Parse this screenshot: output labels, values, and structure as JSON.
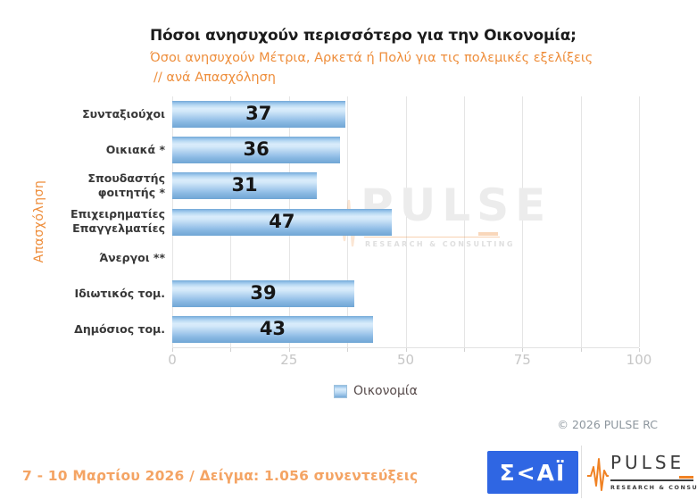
{
  "header": {
    "title": "Πόσοι ανησυχούν περισσότερο για την Οικονομία;",
    "subtitle_line1": "Όσοι ανησυχούν Μέτρια, Αρκετά ή Πολύ για τις πολεμικές εξελίξεις",
    "subtitle_line2": "// ανά Απασχόληση"
  },
  "chart_data": {
    "type": "bar",
    "orientation": "horizontal",
    "title": "Πόσοι ανησυχούν περισσότερο για την Οικονομία;",
    "subtitle": "Όσοι ανησυχούν Μέτρια, Αρκετά ή Πολύ για τις πολεμικές εξελίξεις // ανά Απασχόληση",
    "ylabel": "Απασχόληση",
    "xlabel": "",
    "categories": [
      "Συνταξιούχοι",
      "Οικιακά *",
      "Σπουδαστής φοιτητής *",
      "Επιχειρηματίες Επαγγελματίες",
      "Άνεργοι **",
      "Ιδιωτικός τομ.",
      "Δημόσιος τομ."
    ],
    "categories_display": [
      [
        "Συνταξιούχοι"
      ],
      [
        "Οικιακά *"
      ],
      [
        "Σπουδαστής",
        "φοιτητής *"
      ],
      [
        "Επιχειρηματίες",
        "Επαγγελματίες"
      ],
      [
        "Άνεργοι **"
      ],
      [
        "Ιδιωτικός τομ."
      ],
      [
        "Δημόσιος τομ."
      ]
    ],
    "series": [
      {
        "name": "Οικονομία",
        "values": [
          37,
          36,
          31,
          47,
          null,
          39,
          43
        ]
      }
    ],
    "xlim": [
      0,
      100
    ],
    "x_ticks": [
      0,
      25,
      50,
      75,
      100
    ],
    "minor_tick_step": 12.5,
    "grid": true,
    "legend_position": "bottom",
    "bar_color": "#7FB2DC"
  },
  "legend": {
    "label": "Οικονομία"
  },
  "watermark": {
    "text": "PULSE",
    "subtext": "RESEARCH & CONSULTING"
  },
  "footer": {
    "copyright": "©  2026  PULSE RC",
    "survey_info": "7 - 10  Μαρτίου 2026  /  Δείγμα:  1.056 συνεντεύξεις"
  },
  "logos": {
    "skai_text": "Σ<ΑΪ",
    "pulse_text": "PULSE",
    "pulse_subtext": "RESEARCH & CONSULTING"
  },
  "colors": {
    "accent_orange": "#EE8E3C",
    "footer_orange": "#F4A464",
    "skai_blue": "#2F66E3",
    "grid_gray": "#E5E5E5",
    "axis_label_gray": "#C6C6C6",
    "legend_text": "#574B4B",
    "copyright_gray": "#8D969E"
  }
}
